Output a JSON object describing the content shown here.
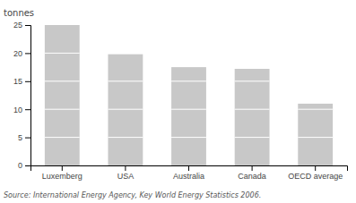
{
  "chart_data": {
    "type": "bar",
    "categories": [
      "Luxemberg",
      "USA",
      "Australia",
      "Canada",
      "OECD average"
    ],
    "values": [
      25.0,
      19.8,
      17.5,
      17.2,
      11.0
    ],
    "color": "#c8c8c8",
    "ylabel": "tonnes",
    "ylim": [
      0,
      25
    ],
    "yticks": [
      0,
      5,
      10,
      15,
      20,
      25
    ],
    "grid": false,
    "annotations": [
      "Source: International Energy Agency, Key World Energy Statistics 2006."
    ]
  }
}
